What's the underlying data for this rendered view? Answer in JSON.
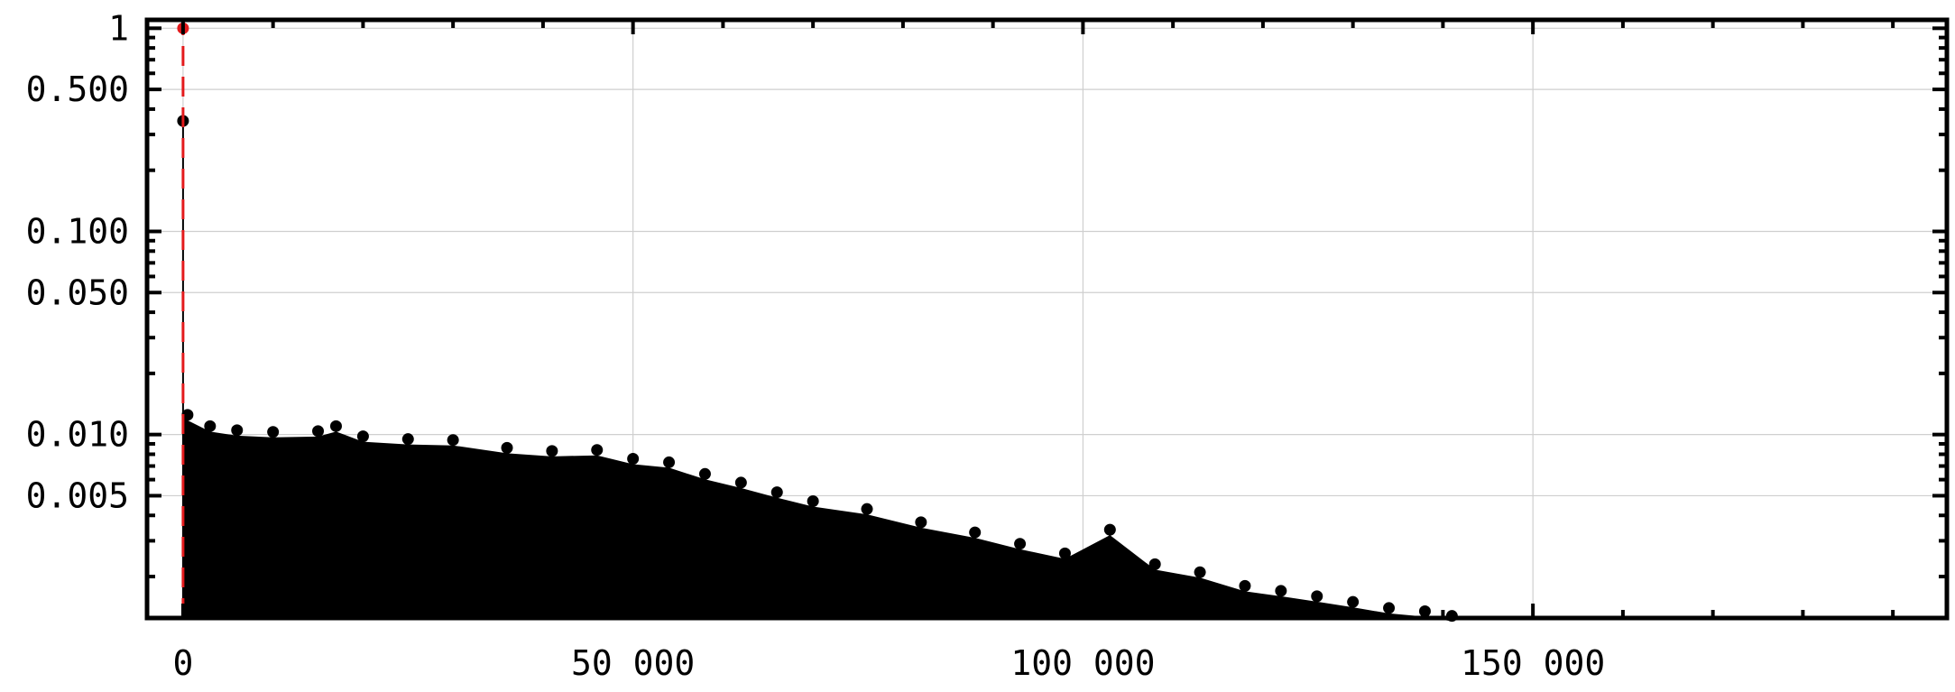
{
  "chart_data": {
    "type": "scatter",
    "title": "",
    "xlabel": "",
    "ylabel": "",
    "xlim": [
      -4000,
      196000
    ],
    "ylim": [
      0.00125,
      1.1
    ],
    "yscale": "log",
    "grid": true,
    "x_ticks": [
      0,
      50000,
      100000,
      150000
    ],
    "x_tick_labels": [
      "0",
      "50 000",
      "100 000",
      "150 000"
    ],
    "y_ticks": [
      1,
      0.5,
      0.1,
      0.05,
      0.01,
      0.005
    ],
    "y_tick_labels": [
      "1",
      "0.500",
      "0.100",
      "0.050",
      "0.010",
      "0.005"
    ],
    "highlight": {
      "style": "red dashed stem",
      "color": "#e31a1c",
      "point": {
        "x": 0,
        "y": 1.0
      }
    },
    "series": [
      {
        "style": "black stems with dot markers",
        "color": "#000000",
        "points": [
          {
            "x": 0,
            "y": 0.35
          },
          {
            "x": 500,
            "y": 0.0125
          },
          {
            "x": 3000,
            "y": 0.011
          },
          {
            "x": 6000,
            "y": 0.0105
          },
          {
            "x": 10000,
            "y": 0.0103
          },
          {
            "x": 15000,
            "y": 0.0104
          },
          {
            "x": 17000,
            "y": 0.011
          },
          {
            "x": 20000,
            "y": 0.0098
          },
          {
            "x": 25000,
            "y": 0.0095
          },
          {
            "x": 30000,
            "y": 0.0094
          },
          {
            "x": 36000,
            "y": 0.0086
          },
          {
            "x": 41000,
            "y": 0.0083
          },
          {
            "x": 46000,
            "y": 0.0084
          },
          {
            "x": 50000,
            "y": 0.0076
          },
          {
            "x": 54000,
            "y": 0.0073
          },
          {
            "x": 58000,
            "y": 0.0064
          },
          {
            "x": 62000,
            "y": 0.0058
          },
          {
            "x": 66000,
            "y": 0.0052
          },
          {
            "x": 70000,
            "y": 0.0047
          },
          {
            "x": 76000,
            "y": 0.0043
          },
          {
            "x": 82000,
            "y": 0.0037
          },
          {
            "x": 88000,
            "y": 0.0033
          },
          {
            "x": 93000,
            "y": 0.0029
          },
          {
            "x": 98000,
            "y": 0.0026
          },
          {
            "x": 103000,
            "y": 0.0034
          },
          {
            "x": 108000,
            "y": 0.0023
          },
          {
            "x": 113000,
            "y": 0.0021
          },
          {
            "x": 118000,
            "y": 0.0018
          },
          {
            "x": 122000,
            "y": 0.0017
          },
          {
            "x": 126000,
            "y": 0.0016
          },
          {
            "x": 130000,
            "y": 0.0015
          },
          {
            "x": 134000,
            "y": 0.0014
          },
          {
            "x": 138000,
            "y": 0.00135
          },
          {
            "x": 141000,
            "y": 0.00128
          }
        ]
      }
    ]
  }
}
